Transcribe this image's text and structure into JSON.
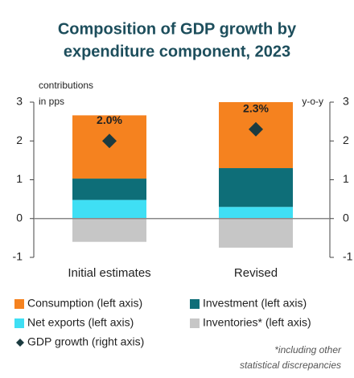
{
  "chart_data": {
    "type": "bar",
    "stacked": true,
    "title": [
      "Composition of GDP growth by",
      "expenditure component, 2023"
    ],
    "y_label": [
      "contributions",
      "in pps"
    ],
    "y2_label": "y-o-y",
    "categories": [
      "Initial estimates",
      "Revised"
    ],
    "series": [
      {
        "name": "Consumption (left axis)",
        "color": "#f5821f",
        "values": [
          1.63,
          1.7
        ]
      },
      {
        "name": "Investment (left axis)",
        "color": "#0e6e78",
        "values": [
          0.55,
          1.0
        ]
      },
      {
        "name": "Net exports (left axis)",
        "color": "#3fdff4",
        "values": [
          0.48,
          0.3
        ]
      },
      {
        "name": "Inventories* (left axis)",
        "color": "#c6c6c6",
        "values": [
          -0.6,
          -0.75
        ]
      },
      {
        "name": "GDP growth (right axis)",
        "color": "#1b3b40",
        "axis": "y2",
        "marker": "diamond",
        "values": [
          2.0,
          2.3
        ],
        "value_labels": [
          "2.0%",
          "2.3%"
        ]
      }
    ],
    "ylim": [
      -1,
      3
    ],
    "yticks": [
      -1,
      0,
      1,
      2,
      3
    ],
    "y2lim": [
      -1,
      3
    ],
    "y2ticks": [
      -1,
      0,
      1,
      2,
      3
    ],
    "footnote": [
      "*including other",
      "statistical discrepancies"
    ]
  }
}
